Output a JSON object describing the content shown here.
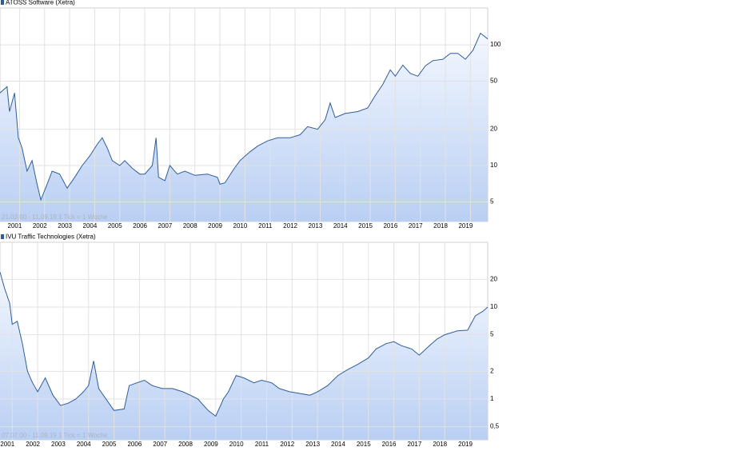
{
  "chart_data": [
    {
      "type": "line",
      "log": true,
      "grid": true,
      "annotation": "21.03.00 - 11.09.19   1 Tick = 1 Woche",
      "xlim": [
        2000.22,
        2019.69
      ],
      "xticks": [
        2001,
        2002,
        2003,
        2004,
        2005,
        2006,
        2007,
        2008,
        2009,
        2010,
        2011,
        2012,
        2013,
        2014,
        2015,
        2016,
        2017,
        2018,
        2019
      ],
      "ylim": [
        3.44,
        202
      ],
      "yticks": [
        5,
        10,
        20,
        50,
        100
      ],
      "x": [
        2000.22,
        2000.5,
        2000.6,
        2000.8,
        2000.95,
        2001.1,
        2001.3,
        2001.5,
        2001.7,
        2001.85,
        2002.1,
        2002.3,
        2002.6,
        2002.9,
        2003.2,
        2003.5,
        2003.8,
        2004.1,
        2004.3,
        2004.5,
        2004.7,
        2005.0,
        2005.2,
        2005.5,
        2005.8,
        2006.0,
        2006.3,
        2006.45,
        2006.55,
        2006.8,
        2007.0,
        2007.3,
        2007.6,
        2008.0,
        2008.5,
        2008.9,
        2009.0,
        2009.2,
        2009.5,
        2009.8,
        2010.2,
        2010.5,
        2010.9,
        2011.3,
        2011.8,
        2012.2,
        2012.5,
        2012.9,
        2013.2,
        2013.4,
        2013.6,
        2014.0,
        2014.5,
        2014.9,
        2015.2,
        2015.5,
        2015.8,
        2016.0,
        2016.3,
        2016.6,
        2016.9,
        2017.2,
        2017.5,
        2017.9,
        2018.2,
        2018.5,
        2018.8,
        2019.1,
        2019.4,
        2019.69
      ],
      "series": [
        {
          "name": "ATOSS Software (Xetra)",
          "color": "#2f5d9a",
          "values": [
            40,
            45,
            28,
            40,
            17,
            14,
            9,
            11,
            7,
            5.2,
            7,
            9,
            8.5,
            6.5,
            8,
            10,
            12,
            15,
            17,
            14,
            11,
            10,
            11,
            9.5,
            8.5,
            8.5,
            10,
            17,
            8,
            7.5,
            10,
            8.5,
            9,
            8.3,
            8.5,
            8,
            7,
            7.2,
            9,
            11,
            13,
            14.5,
            16,
            17,
            17,
            18,
            21,
            20,
            24,
            33,
            25,
            27,
            28,
            30,
            38,
            47,
            62,
            55,
            68,
            58,
            55,
            67,
            74,
            76,
            85,
            85,
            76,
            90,
            125,
            112
          ]
        }
      ]
    },
    {
      "type": "line",
      "log": true,
      "grid": true,
      "annotation": "07.07.00 - 11.09.19   1 Tick = 1 Woche",
      "xlim": [
        2000.52,
        2019.69
      ],
      "xticks": [
        2001,
        2002,
        2003,
        2004,
        2005,
        2006,
        2007,
        2008,
        2009,
        2010,
        2011,
        2012,
        2013,
        2014,
        2015,
        2016,
        2017,
        2018,
        2019
      ],
      "ylim": [
        0.36,
        50.6
      ],
      "yticks": [
        {
          "value": 0.5,
          "label": "0,5"
        },
        1,
        2,
        5,
        10,
        20
      ],
      "x": [
        2000.52,
        2000.7,
        2000.9,
        2001.0,
        2001.2,
        2001.4,
        2001.6,
        2001.8,
        2002.0,
        2002.3,
        2002.6,
        2002.9,
        2003.2,
        2003.5,
        2003.8,
        2004.0,
        2004.2,
        2004.4,
        2004.8,
        2005.0,
        2005.4,
        2005.6,
        2005.9,
        2006.2,
        2006.5,
        2006.9,
        2007.3,
        2007.7,
        2008.0,
        2008.3,
        2008.7,
        2009.0,
        2009.3,
        2009.5,
        2009.8,
        2010.1,
        2010.5,
        2010.8,
        2011.2,
        2011.5,
        2011.9,
        2012.3,
        2012.7,
        2013.0,
        2013.4,
        2013.8,
        2014.2,
        2014.6,
        2015.0,
        2015.3,
        2015.7,
        2016.0,
        2016.3,
        2016.7,
        2017.0,
        2017.4,
        2017.7,
        2018.0,
        2018.5,
        2018.9,
        2019.2,
        2019.5,
        2019.69
      ],
      "series": [
        {
          "name": "IVU Traffic Technologies (Xetra)",
          "color": "#2f5d9a",
          "values": [
            24,
            16,
            11,
            6.5,
            7,
            4,
            2,
            1.5,
            1.2,
            1.7,
            1.1,
            0.85,
            0.9,
            1.0,
            1.2,
            1.4,
            2.6,
            1.3,
            0.9,
            0.75,
            0.78,
            1.4,
            1.5,
            1.6,
            1.4,
            1.3,
            1.3,
            1.2,
            1.1,
            1.0,
            0.75,
            0.65,
            1.0,
            1.2,
            1.8,
            1.7,
            1.5,
            1.6,
            1.5,
            1.3,
            1.2,
            1.15,
            1.1,
            1.2,
            1.4,
            1.8,
            2.1,
            2.4,
            2.8,
            3.5,
            4.0,
            4.2,
            3.8,
            3.5,
            3.0,
            3.8,
            4.5,
            5.0,
            5.5,
            5.6,
            8,
            9,
            10
          ]
        }
      ]
    }
  ]
}
